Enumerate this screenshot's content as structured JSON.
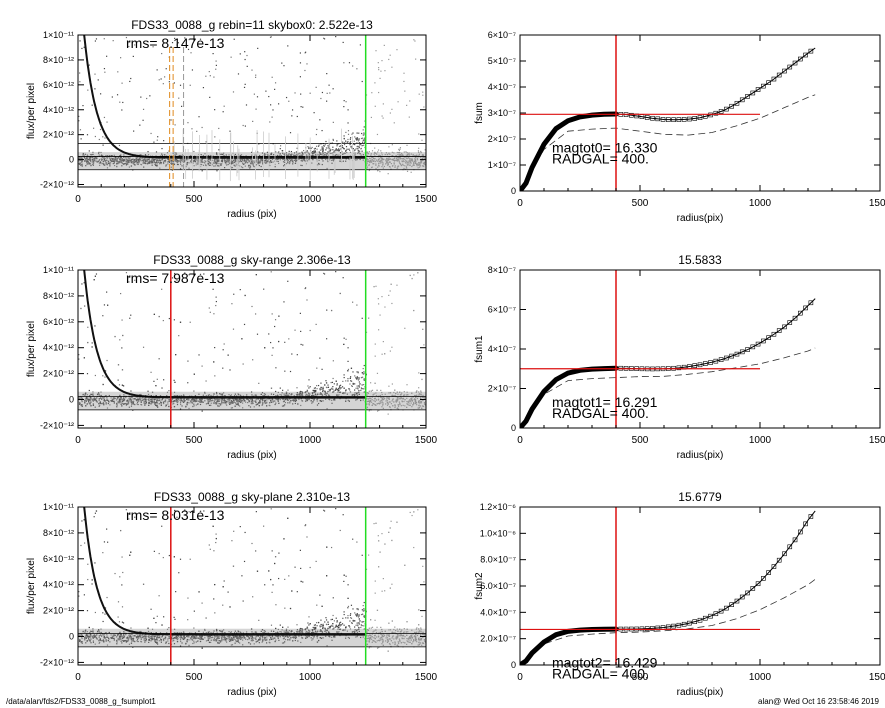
{
  "footer": {
    "path": "/data/alan/fds2/FDS33_0088_g_fsumplot1",
    "stamp": "alan@  Wed Oct 16 23:58:46 2019"
  },
  "chart_data": [
    {
      "type": "scatter",
      "title": "FDS33_0088_g rebin=11    skybox0:  2.522e-13",
      "annotation": "rms= 8.147e-13",
      "xlabel": "radius (pix)",
      "ylabel": "flux/per pixel",
      "xlim": [
        0,
        1500
      ],
      "ylim": [
        -2.2e-12,
        1e-11
      ],
      "xticks": [
        0,
        500,
        1000,
        1500
      ],
      "xtick_labels": [
        "0",
        "500",
        "1000",
        "1500"
      ],
      "yticks": [
        -2e-12,
        0,
        2e-12,
        4e-12,
        6e-12,
        8e-12,
        1e-11
      ],
      "ytick_labels": [
        "-2×10⁻¹²",
        "0",
        "2×10⁻¹²",
        "4×10⁻¹²",
        "6×10⁻¹²",
        "8×10⁻¹²",
        "1×10⁻¹¹"
      ],
      "hlines": [
        2.522e-13,
        -8.147e-13,
        1.3e-12
      ],
      "vlines": [
        {
          "x": 1240,
          "color": "#22dd22"
        }
      ],
      "dashed_vlines": [
        {
          "x": 395,
          "color": "#e08a1e"
        },
        {
          "x": 410,
          "color": "#e08a1e"
        },
        {
          "x": 455,
          "color": "#999999"
        }
      ],
      "curve": "profile",
      "scatter_style": "rebin"
    },
    {
      "type": "line",
      "title": "",
      "xlabel": "radius(pix)",
      "ylabel": "fsum",
      "xlim": [
        0,
        1500
      ],
      "ylim": [
        0,
        6e-07
      ],
      "xticks": [
        0,
        500,
        1000,
        1500
      ],
      "xtick_labels": [
        "0",
        "500",
        "1000",
        "1500"
      ],
      "yticks": [
        0,
        1e-07,
        2e-07,
        3e-07,
        4e-07,
        5e-07,
        6e-07
      ],
      "ytick_labels": [
        "0",
        "1×10⁻⁷",
        "2×10⁻⁷",
        "3×10⁻⁷",
        "4×10⁻⁷",
        "5×10⁻⁷",
        "6×10⁻⁷"
      ],
      "hline": {
        "y": 2.95e-07,
        "x_to": 1000,
        "color": "#dd1111"
      },
      "vline": {
        "x": 400,
        "color": "#dd1111"
      },
      "magtot_label": "magtot0=  16.330",
      "radgal_label": "RADGAL=    400.",
      "series": [
        {
          "x": [
            0,
            25,
            50,
            100,
            150,
            200,
            250,
            300,
            350,
            400,
            450,
            500,
            550,
            600,
            650,
            700,
            750,
            800,
            850,
            900,
            950,
            1000,
            1050,
            1100,
            1150,
            1200,
            1230
          ],
          "y": [
            0,
            3e-08,
            9e-08,
            1.8e-07,
            2.4e-07,
            2.7e-07,
            2.85e-07,
            2.92e-07,
            2.95e-07,
            2.96e-07,
            2.93e-07,
            2.87e-07,
            2.8e-07,
            2.75e-07,
            2.74e-07,
            2.76e-07,
            2.82e-07,
            2.94e-07,
            3.1e-07,
            3.35e-07,
            3.65e-07,
            3.95e-07,
            4.25e-07,
            4.6e-07,
            4.95e-07,
            5.3e-07,
            5.5e-07
          ]
        },
        {
          "x": [
            0,
            100,
            200,
            300,
            400,
            500,
            600,
            700,
            800,
            900,
            1000,
            1100,
            1200,
            1230
          ],
          "y": [
            0,
            1.6e-07,
            2.3e-07,
            2.38e-07,
            2.42e-07,
            2.3e-07,
            2.18e-07,
            2.15e-07,
            2.25e-07,
            2.5e-07,
            2.8e-07,
            3.2e-07,
            3.6e-07,
            3.7e-07
          ]
        }
      ]
    },
    {
      "type": "scatter",
      "title": "FDS33_0088_g sky-range  2.306e-13",
      "annotation": "rms= 7.987e-13",
      "xlabel": "radius (pix)",
      "ylabel": "flux/per pixel",
      "xlim": [
        0,
        1500
      ],
      "ylim": [
        -2.2e-12,
        1e-11
      ],
      "xticks": [
        0,
        500,
        1000,
        1500
      ],
      "xtick_labels": [
        "0",
        "500",
        "1000",
        "1500"
      ],
      "yticks": [
        -2e-12,
        0,
        2e-12,
        4e-12,
        6e-12,
        8e-12,
        1e-11
      ],
      "ytick_labels": [
        "-2×10⁻¹²",
        "0",
        "2×10⁻¹²",
        "4×10⁻¹²",
        "6×10⁻¹²",
        "8×10⁻¹²",
        "1×10⁻¹¹"
      ],
      "hlines": [
        2.306e-13,
        -7.987e-13
      ],
      "vlines": [
        {
          "x": 400,
          "color": "#dd1111"
        },
        {
          "x": 1240,
          "color": "#22dd22"
        }
      ],
      "dashed_vlines": [],
      "curve": "profile",
      "scatter_style": "plain"
    },
    {
      "type": "line",
      "title": "15.5833",
      "xlabel": "radius(pix)",
      "ylabel": "fsum1",
      "xlim": [
        0,
        1500
      ],
      "ylim": [
        0,
        8e-07
      ],
      "xticks": [
        0,
        500,
        1000,
        1500
      ],
      "xtick_labels": [
        "0",
        "500",
        "1000",
        "1500"
      ],
      "yticks": [
        0,
        2e-07,
        4e-07,
        6e-07,
        8e-07
      ],
      "ytick_labels": [
        "0",
        "2×10⁻⁷",
        "4×10⁻⁷",
        "6×10⁻⁷",
        "8×10⁻⁷"
      ],
      "hline": {
        "y": 3e-07,
        "x_to": 1000,
        "color": "#dd1111"
      },
      "vline": {
        "x": 400,
        "color": "#dd1111"
      },
      "magtot_label": "magtot1=  16.291",
      "radgal_label": "RADGAL=    400.",
      "series": [
        {
          "x": [
            0,
            25,
            50,
            100,
            150,
            200,
            250,
            300,
            350,
            400,
            450,
            500,
            550,
            600,
            650,
            700,
            750,
            800,
            850,
            900,
            950,
            1000,
            1050,
            1100,
            1150,
            1200,
            1230
          ],
          "y": [
            0,
            3.5e-08,
            9.5e-08,
            1.85e-07,
            2.45e-07,
            2.78e-07,
            2.92e-07,
            2.98e-07,
            3.01e-07,
            3.03e-07,
            3.02e-07,
            3e-07,
            2.99e-07,
            3e-07,
            3.03e-07,
            3.1e-07,
            3.2e-07,
            3.33e-07,
            3.5e-07,
            3.72e-07,
            3.98e-07,
            4.3e-07,
            4.68e-07,
            5.1e-07,
            5.6e-07,
            6.2e-07,
            6.55e-07
          ]
        },
        {
          "x": [
            0,
            100,
            200,
            300,
            400,
            500,
            600,
            700,
            800,
            900,
            1000,
            1100,
            1200,
            1230
          ],
          "y": [
            0,
            1.7e-07,
            2.4e-07,
            2.5e-07,
            2.55e-07,
            2.6e-07,
            2.62e-07,
            2.72e-07,
            2.85e-07,
            3.05e-07,
            3.25e-07,
            3.55e-07,
            3.9e-07,
            4.05e-07
          ]
        }
      ]
    },
    {
      "type": "scatter",
      "title": "FDS33_0088_g sky-plane  2.310e-13",
      "annotation": "rms= 8.031e-13",
      "xlabel": "radius (pix)",
      "ylabel": "flux/per pixel",
      "xlim": [
        0,
        1500
      ],
      "ylim": [
        -2.2e-12,
        1e-11
      ],
      "xticks": [
        0,
        500,
        1000,
        1500
      ],
      "xtick_labels": [
        "0",
        "500",
        "1000",
        "1500"
      ],
      "yticks": [
        -2e-12,
        0,
        2e-12,
        4e-12,
        6e-12,
        8e-12,
        1e-11
      ],
      "ytick_labels": [
        "-2×10⁻¹²",
        "0",
        "2×10⁻¹²",
        "4×10⁻¹²",
        "6×10⁻¹²",
        "8×10⁻¹²",
        "1×10⁻¹¹"
      ],
      "hlines": [
        2.31e-13,
        -8.031e-13
      ],
      "vlines": [
        {
          "x": 400,
          "color": "#dd1111"
        },
        {
          "x": 1240,
          "color": "#22dd22"
        }
      ],
      "dashed_vlines": [],
      "curve": "profile",
      "scatter_style": "plain"
    },
    {
      "type": "line",
      "title": "15.6779",
      "xlabel": "radius(pix)",
      "ylabel": "fsum2",
      "xlim": [
        0,
        1500
      ],
      "ylim": [
        0,
        1.2e-06
      ],
      "xticks": [
        0,
        500,
        1000,
        1500
      ],
      "xtick_labels": [
        "0",
        "500",
        "1000",
        "1500"
      ],
      "yticks": [
        0,
        2e-07,
        4e-07,
        6e-07,
        8e-07,
        1e-06,
        1.2e-06
      ],
      "ytick_labels": [
        "0",
        "2.0×10⁻⁷",
        "4.0×10⁻⁷",
        "6.0×10⁻⁷",
        "8.0×10⁻⁷",
        "1.0×10⁻⁶",
        "1.2×10⁻⁶"
      ],
      "hline": {
        "y": 2.7e-07,
        "x_to": 1000,
        "color": "#dd1111"
      },
      "vline": {
        "x": 400,
        "color": "#dd1111"
      },
      "magtot_label": "magtot2=  16.429",
      "radgal_label": "RADGAL=    400.",
      "series": [
        {
          "x": [
            0,
            25,
            50,
            100,
            150,
            200,
            250,
            300,
            350,
            400,
            450,
            500,
            550,
            600,
            650,
            700,
            750,
            800,
            850,
            900,
            950,
            1000,
            1050,
            1100,
            1150,
            1200,
            1230
          ],
          "y": [
            0,
            3e-08,
            9e-08,
            1.75e-07,
            2.3e-07,
            2.55e-07,
            2.65e-07,
            2.7e-07,
            2.72e-07,
            2.73e-07,
            2.73e-07,
            2.74e-07,
            2.78e-07,
            2.85e-07,
            2.98e-07,
            3.15e-07,
            3.4e-07,
            3.75e-07,
            4.2e-07,
            4.8e-07,
            5.5e-07,
            6.3e-07,
            7.3e-07,
            8.4e-07,
            9.6e-07,
            1.1e-06,
            1.17e-06
          ]
        },
        {
          "x": [
            0,
            100,
            200,
            300,
            400,
            500,
            600,
            700,
            800,
            900,
            1000,
            1100,
            1200,
            1230
          ],
          "y": [
            0,
            1.6e-07,
            2.2e-07,
            2.35e-07,
            2.45e-07,
            2.5e-07,
            2.6e-07,
            2.75e-07,
            3e-07,
            3.5e-07,
            4.2e-07,
            5.1e-07,
            6.1e-07,
            6.5e-07
          ]
        }
      ]
    }
  ]
}
